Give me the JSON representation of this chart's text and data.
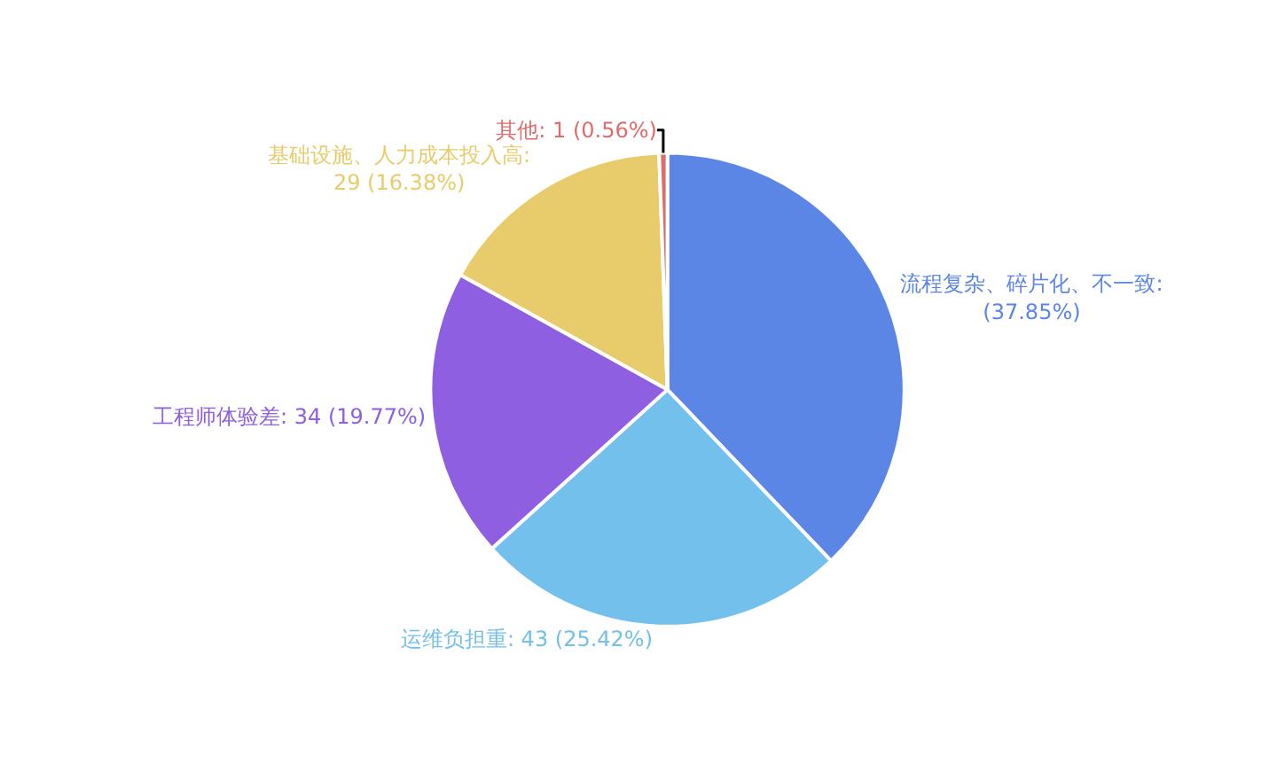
{
  "chart_data": {
    "type": "pie",
    "categories": [
      "流程复杂、碎片化、不一致",
      "运维负担重",
      "工程师体验差",
      "基础设施、人力成本投入高",
      "其他"
    ],
    "values": [
      37.85,
      25.42,
      19.77,
      16.38,
      0.56
    ],
    "value_labels": [
      ": (37.85%)",
      ": 43 (25.42%)",
      ": 34 (19.77%)",
      ": 29 (16.38%)",
      ": 1 (0.56%)"
    ],
    "colors": [
      "#5b86e5",
      "#73c0ec",
      "#8e5fe0",
      "#e8cb6a",
      "#e06b6b"
    ],
    "legend": false
  }
}
